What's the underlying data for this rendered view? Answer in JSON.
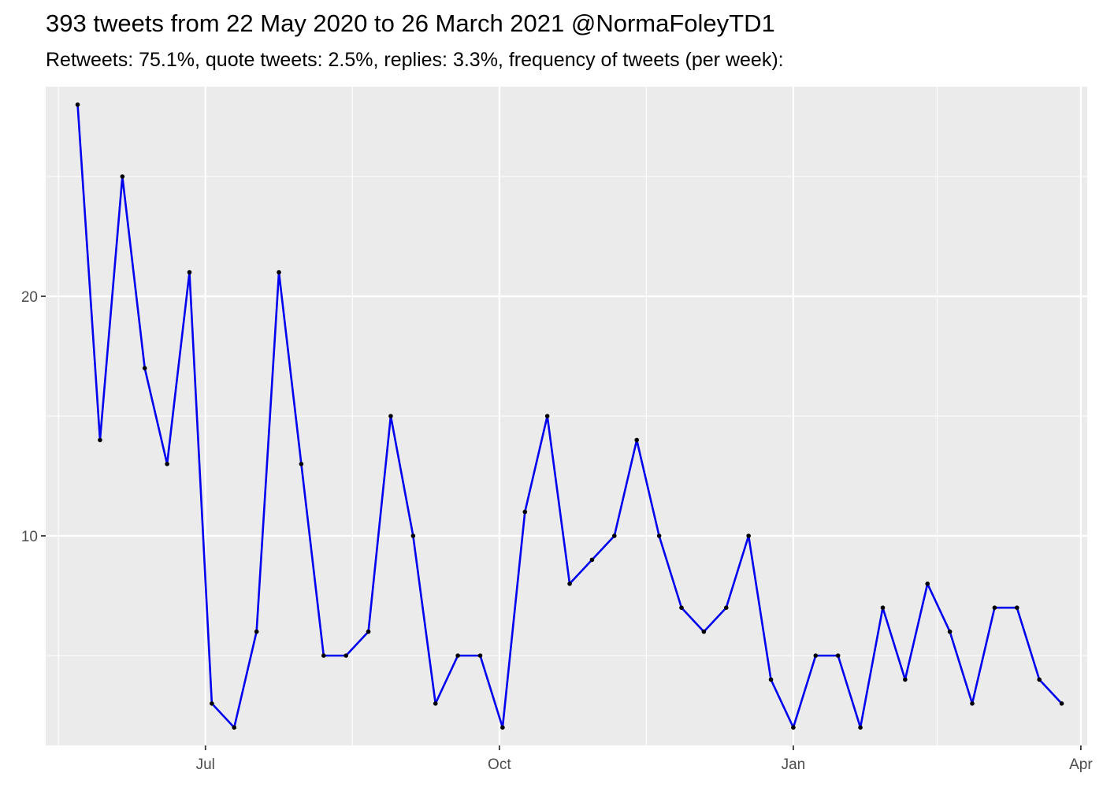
{
  "title": "393 tweets from 22 May 2020 to 26 March 2021 @NormaFoleyTD1",
  "subtitle": "Retweets: 75.1%, quote tweets: 2.5%, replies: 3.3%, frequency of tweets (per week):",
  "chart_data": {
    "type": "line",
    "title": "393 tweets from 22 May 2020 to 26 March 2021 @NormaFoleyTD1",
    "subtitle": "Retweets: 75.1%, quote tweets: 2.5%, replies: 3.3%, frequency of tweets (per week):",
    "xlabel": "",
    "ylabel": "",
    "x_type": "date",
    "xlim": [
      "2020-05-12",
      "2021-04-03"
    ],
    "ylim": [
      1.25,
      28.75
    ],
    "grid": true,
    "legend": "none",
    "line_color": "#0000ee",
    "point_color": "#000000",
    "panel_background": "#ebebeb",
    "x_ticks": [
      {
        "date": "2020-07-01",
        "label": "Jul"
      },
      {
        "date": "2020-10-01",
        "label": "Oct"
      },
      {
        "date": "2021-01-01",
        "label": "Jan"
      },
      {
        "date": "2021-04-01",
        "label": "Apr"
      }
    ],
    "x_minor_ticks": [
      "2020-05-16",
      "2020-08-16",
      "2020-11-16",
      "2021-02-15"
    ],
    "y_ticks": [
      {
        "value": 10,
        "label": "10"
      },
      {
        "value": 20,
        "label": "20"
      }
    ],
    "y_minor_ticks": [
      5,
      15,
      25
    ],
    "x": [
      "2020-05-22",
      "2020-05-29",
      "2020-06-05",
      "2020-06-12",
      "2020-06-19",
      "2020-06-26",
      "2020-07-03",
      "2020-07-10",
      "2020-07-17",
      "2020-07-24",
      "2020-07-31",
      "2020-08-07",
      "2020-08-14",
      "2020-08-21",
      "2020-08-28",
      "2020-09-04",
      "2020-09-11",
      "2020-09-18",
      "2020-09-25",
      "2020-10-02",
      "2020-10-09",
      "2020-10-16",
      "2020-10-23",
      "2020-10-30",
      "2020-11-06",
      "2020-11-13",
      "2020-11-20",
      "2020-11-27",
      "2020-12-04",
      "2020-12-11",
      "2020-12-18",
      "2020-12-25",
      "2021-01-01",
      "2021-01-08",
      "2021-01-15",
      "2021-01-22",
      "2021-01-29",
      "2021-02-05",
      "2021-02-12",
      "2021-02-19",
      "2021-02-26",
      "2021-03-05",
      "2021-03-12",
      "2021-03-19",
      "2021-03-26"
    ],
    "y": [
      28,
      14,
      25,
      17,
      13,
      21,
      3,
      2,
      6,
      21,
      13,
      5,
      5,
      6,
      15,
      10,
      3,
      5,
      5,
      2,
      11,
      15,
      8,
      9,
      10,
      14,
      10,
      7,
      6,
      7,
      10,
      4,
      2,
      5,
      5,
      2,
      7,
      4,
      8,
      6,
      3,
      7,
      7,
      4,
      3
    ]
  }
}
